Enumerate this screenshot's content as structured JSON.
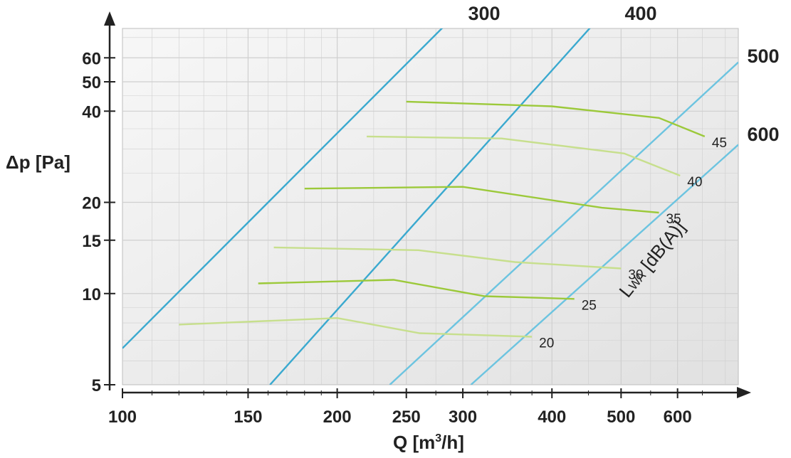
{
  "chart_data": {
    "type": "line",
    "x_axis": {
      "label": "Q [m³/h]",
      "label_main": "Q [m",
      "label_sup": "3",
      "label_tail": "/h]",
      "scale": "log",
      "range": [
        100,
        730
      ],
      "ticks": [
        100,
        150,
        200,
        250,
        300,
        400,
        500,
        600
      ],
      "tick_labels": [
        "100",
        "150",
        "200",
        "250",
        "300",
        "400",
        "500",
        "600"
      ]
    },
    "y_axis": {
      "label": "Δp [Pa]",
      "scale": "log",
      "range": [
        5,
        75
      ],
      "ticks": [
        5,
        10,
        15,
        20,
        40,
        50,
        60
      ],
      "tick_labels": [
        "5",
        "10",
        "15",
        "20",
        "40",
        "50",
        "60"
      ]
    },
    "grid": true,
    "fan_speed_lines": [
      {
        "label": "300",
        "points": [
          [
            100,
            6.6
          ],
          [
            300,
            88
          ]
        ],
        "color": "#3aa9cf"
      },
      {
        "label": "400",
        "points": [
          [
            161,
            5.0
          ],
          [
            480,
            88
          ]
        ],
        "color": "#3aa9cf"
      },
      {
        "label": "500",
        "points": [
          [
            237,
            5.0
          ],
          [
            730,
            58
          ]
        ],
        "color": "#6cc4e0"
      },
      {
        "label": "600",
        "points": [
          [
            308,
            5.0
          ],
          [
            730,
            31
          ]
        ],
        "color": "#6cc4e0"
      }
    ],
    "sound_curves": [
      {
        "name": "45",
        "label": "45",
        "color": "#9cc93a",
        "points": [
          [
            250,
            43
          ],
          [
            400,
            41.5
          ],
          [
            565,
            38
          ],
          [
            655,
            33
          ]
        ]
      },
      {
        "name": "40",
        "label": "40",
        "color": "#c7df8d",
        "points": [
          [
            220,
            33
          ],
          [
            340,
            32.5
          ],
          [
            505,
            29
          ],
          [
            605,
            24.5
          ]
        ]
      },
      {
        "name": "35",
        "label": "35",
        "color": "#9cc93a",
        "points": [
          [
            180,
            22.2
          ],
          [
            300,
            22.5
          ],
          [
            470,
            19.2
          ],
          [
            565,
            18.5
          ]
        ]
      },
      {
        "name": "30",
        "label": "30",
        "color": "#c7df8d",
        "points": [
          [
            163,
            14.2
          ],
          [
            260,
            13.9
          ],
          [
            355,
            12.7
          ],
          [
            500,
            12.1
          ]
        ]
      },
      {
        "name": "25",
        "label": "25",
        "color": "#9cc93a",
        "points": [
          [
            155,
            10.8
          ],
          [
            240,
            11.1
          ],
          [
            322,
            9.8
          ],
          [
            430,
            9.6
          ]
        ]
      },
      {
        "name": "20",
        "label": "20",
        "color": "#c7df8d",
        "points": [
          [
            120,
            7.9
          ],
          [
            200,
            8.3
          ],
          [
            261,
            7.4
          ],
          [
            375,
            7.2
          ]
        ]
      }
    ],
    "annotation": {
      "main": "L",
      "sub": "WA",
      "tail": " [dB(A)]"
    },
    "colors": {
      "axis": "#222222",
      "grid": "#cfcfcf",
      "plot_bg_start": "#f7f7f7",
      "plot_bg_end": "#e1e1e1"
    }
  }
}
